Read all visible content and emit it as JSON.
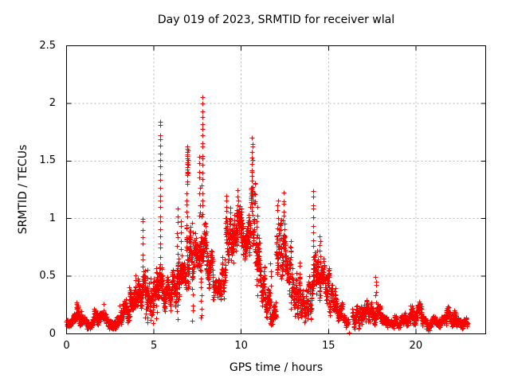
{
  "chart_data": {
    "type": "scatter",
    "title": "Day 019 of 2023, SRMTID for receiver wlal",
    "xlabel": "GPS time / hours",
    "ylabel": "SRMTID / TECUs",
    "xlim": [
      0,
      24
    ],
    "ylim": [
      0,
      2.5
    ],
    "xticks": [
      0,
      5,
      10,
      15,
      20
    ],
    "yticks": [
      0,
      0.5,
      1,
      1.5,
      2,
      2.5
    ],
    "grid": true,
    "legend_position": "none",
    "marker": "plus",
    "marker_color": "#ff0000",
    "grid_color": "#b4b4b4",
    "border_color": "#000000",
    "background_color": "#ffffff",
    "observed_features": {
      "max_point": {
        "x": 7.8,
        "y": 2.05
      },
      "secondary_peaks": [
        {
          "x": 5.36,
          "y": 1.86
        },
        {
          "x": 10.6,
          "y": 1.69
        },
        {
          "x": 6.9,
          "y": 1.62
        },
        {
          "x": 6.35,
          "y": 1.08
        },
        {
          "x": 14.1,
          "y": 1.25
        },
        {
          "x": 12.4,
          "y": 1.21
        },
        {
          "x": 4.36,
          "y": 1.02
        }
      ],
      "isolated_point_on_axis": {
        "x": 16.15,
        "y": 0.01
      },
      "data_start_hour": 0.0,
      "data_end_hour": 22.95,
      "quiet_level_tecus": 0.1
    },
    "series": [
      {
        "name": "SRMTID",
        "representation": "dense scatter band plus vertical spike strands, values in TECUs vs GPS hours",
        "band_segments": [
          [
            0.0,
            0.55,
            0.06,
            0.17,
            90
          ],
          [
            0.55,
            0.85,
            0.08,
            0.27,
            50
          ],
          [
            0.85,
            1.55,
            0.04,
            0.15,
            100
          ],
          [
            1.55,
            1.85,
            0.07,
            0.24,
            45
          ],
          [
            1.85,
            3.05,
            0.05,
            0.18,
            160
          ],
          [
            3.05,
            3.6,
            0.1,
            0.3,
            90
          ],
          [
            3.6,
            4.1,
            0.17,
            0.42,
            90
          ],
          [
            4.1,
            4.5,
            0.22,
            0.55,
            70
          ],
          [
            4.5,
            5.0,
            0.08,
            0.5,
            55
          ],
          [
            5.0,
            5.3,
            0.28,
            0.55,
            50
          ],
          [
            5.3,
            5.5,
            0.3,
            0.62,
            40
          ],
          [
            5.5,
            5.95,
            0.22,
            0.48,
            80
          ],
          [
            5.95,
            6.3,
            0.27,
            0.54,
            65
          ],
          [
            6.3,
            6.5,
            0.3,
            0.65,
            35
          ],
          [
            6.5,
            6.85,
            0.35,
            0.65,
            60
          ],
          [
            6.85,
            7.1,
            0.45,
            0.95,
            55
          ],
          [
            7.1,
            7.45,
            0.45,
            0.9,
            55
          ],
          [
            7.45,
            7.7,
            0.5,
            0.88,
            45
          ],
          [
            7.7,
            8.0,
            0.55,
            0.97,
            55
          ],
          [
            8.0,
            8.4,
            0.38,
            0.78,
            70
          ],
          [
            8.4,
            8.85,
            0.26,
            0.48,
            75
          ],
          [
            8.85,
            9.1,
            0.35,
            0.65,
            40
          ],
          [
            9.1,
            9.4,
            0.6,
            1.1,
            55
          ],
          [
            9.4,
            9.6,
            0.62,
            0.95,
            40
          ],
          [
            9.6,
            10.05,
            0.68,
            1.18,
            85
          ],
          [
            10.05,
            10.45,
            0.6,
            1.05,
            75
          ],
          [
            10.45,
            10.8,
            0.75,
            1.3,
            70
          ],
          [
            10.8,
            11.05,
            0.45,
            0.95,
            45
          ],
          [
            11.05,
            11.35,
            0.28,
            0.62,
            50
          ],
          [
            11.35,
            11.65,
            0.12,
            0.42,
            50
          ],
          [
            11.65,
            12.0,
            0.05,
            0.3,
            55
          ],
          [
            12.0,
            12.25,
            0.4,
            0.95,
            45
          ],
          [
            12.25,
            12.55,
            0.48,
            1.0,
            55
          ],
          [
            12.55,
            12.85,
            0.33,
            0.78,
            50
          ],
          [
            12.85,
            13.15,
            0.18,
            0.55,
            50
          ],
          [
            13.15,
            13.5,
            0.14,
            0.48,
            55
          ],
          [
            13.5,
            13.85,
            0.09,
            0.38,
            55
          ],
          [
            13.85,
            14.1,
            0.15,
            0.5,
            40
          ],
          [
            14.1,
            14.4,
            0.35,
            0.75,
            55
          ],
          [
            14.4,
            14.7,
            0.32,
            0.7,
            50
          ],
          [
            14.7,
            15.05,
            0.28,
            0.58,
            55
          ],
          [
            15.05,
            15.4,
            0.18,
            0.43,
            55
          ],
          [
            15.4,
            15.8,
            0.09,
            0.3,
            60
          ],
          [
            15.8,
            16.15,
            0.04,
            0.18,
            40
          ],
          [
            16.35,
            16.75,
            0.05,
            0.24,
            55
          ],
          [
            16.75,
            17.15,
            0.07,
            0.27,
            55
          ],
          [
            17.15,
            17.6,
            0.09,
            0.3,
            65
          ],
          [
            17.6,
            18.1,
            0.08,
            0.26,
            70
          ],
          [
            18.1,
            18.75,
            0.04,
            0.15,
            90
          ],
          [
            18.75,
            19.3,
            0.05,
            0.16,
            75
          ],
          [
            19.3,
            19.7,
            0.06,
            0.19,
            55
          ],
          [
            19.7,
            20.35,
            0.09,
            0.27,
            90
          ],
          [
            20.35,
            21.05,
            0.04,
            0.15,
            95
          ],
          [
            21.05,
            21.75,
            0.05,
            0.17,
            95
          ],
          [
            21.75,
            22.3,
            0.07,
            0.23,
            75
          ],
          [
            22.3,
            22.95,
            0.04,
            0.15,
            85
          ]
        ],
        "spikes": [
          [
            2.1,
            0.17,
            0.25,
            3
          ],
          [
            3.95,
            0.36,
            0.52,
            4
          ],
          [
            4.36,
            0.45,
            1.02,
            10
          ],
          [
            4.62,
            0.1,
            0.55,
            8
          ],
          [
            4.8,
            0.12,
            0.5,
            7
          ],
          [
            4.95,
            0.1,
            0.45,
            6
          ],
          [
            5.15,
            0.12,
            0.55,
            7
          ],
          [
            5.36,
            0.62,
            1.86,
            22
          ],
          [
            6.35,
            0.12,
            1.08,
            16
          ],
          [
            6.55,
            0.55,
            1.0,
            8
          ],
          [
            6.9,
            1.0,
            1.4,
            8
          ],
          [
            6.92,
            1.38,
            1.62,
            16
          ],
          [
            7.2,
            0.1,
            0.95,
            12
          ],
          [
            7.6,
            1.0,
            1.55,
            9
          ],
          [
            7.7,
            0.12,
            0.55,
            9
          ],
          [
            7.78,
            1.0,
            2.06,
            20
          ],
          [
            9.15,
            1.0,
            1.21,
            5
          ],
          [
            9.8,
            1.12,
            1.24,
            4
          ],
          [
            10.62,
            1.28,
            1.69,
            12
          ],
          [
            10.9,
            0.35,
            1.12,
            12
          ],
          [
            11.7,
            0.28,
            0.62,
            6
          ],
          [
            12.1,
            0.92,
            1.16,
            6
          ],
          [
            12.42,
            0.98,
            1.21,
            6
          ],
          [
            13.35,
            0.44,
            0.63,
            5
          ],
          [
            14.12,
            0.5,
            1.25,
            13
          ],
          [
            14.5,
            0.68,
            0.86,
            5
          ],
          [
            16.15,
            0.01,
            0.01,
            1
          ],
          [
            17.72,
            0.28,
            0.5,
            6
          ]
        ]
      }
    ]
  }
}
